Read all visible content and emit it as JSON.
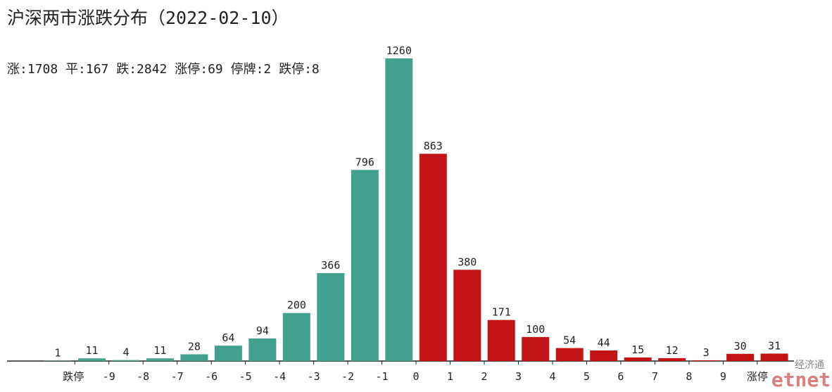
{
  "chart_data": {
    "type": "bar",
    "title": "沪深两市涨跌分布（2022-02-10）",
    "subtitle": "涨:1708 平:167 跌:2842 涨停:69 停牌:2 跌停:8",
    "categories": [
      null,
      null,
      null,
      null,
      null,
      null,
      null,
      null,
      null,
      null,
      null,
      null,
      null,
      null,
      null,
      null,
      null,
      null,
      null,
      null,
      null,
      null
    ],
    "values": [
      1,
      11,
      4,
      11,
      28,
      64,
      94,
      200,
      366,
      796,
      1260,
      863,
      380,
      171,
      100,
      54,
      44,
      15,
      12,
      3,
      30,
      31
    ],
    "colors": [
      "#42a08e",
      "#42a08e",
      "#42a08e",
      "#42a08e",
      "#42a08e",
      "#42a08e",
      "#42a08e",
      "#42a08e",
      "#42a08e",
      "#42a08e",
      "#42a08e",
      "#c21414",
      "#c21414",
      "#c21414",
      "#c21414",
      "#c21414",
      "#c21414",
      "#c21414",
      "#c21414",
      "#c21414",
      "#c21414",
      "#c21414"
    ],
    "edge_labels": [
      "跌停",
      "-9",
      "-8",
      "-7",
      "-6",
      "-5",
      "-4",
      "-3",
      "-2",
      "-1",
      "0",
      "1",
      "2",
      "3",
      "4",
      "5",
      "6",
      "7",
      "8",
      "9",
      "涨停"
    ],
    "ylim": [
      0,
      1260
    ],
    "watermark": {
      "top": "经济通",
      "logo": "etnet"
    }
  }
}
